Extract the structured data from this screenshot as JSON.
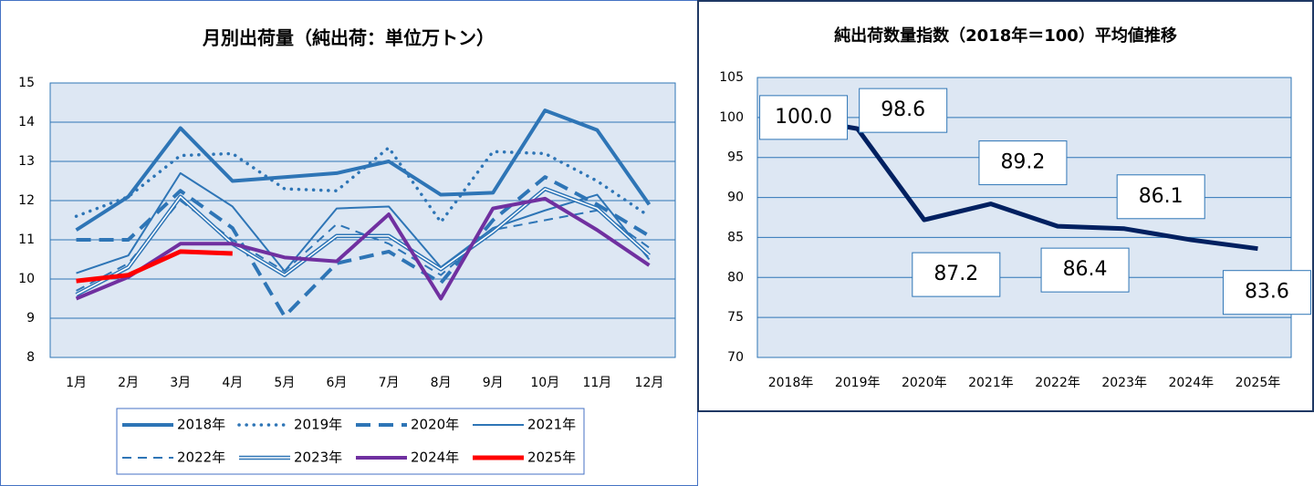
{
  "chart_data": [
    {
      "type": "line",
      "title": "月別出荷量（純出荷：単位万トン）",
      "categories": [
        "1月",
        "2月",
        "3月",
        "4月",
        "5月",
        "6月",
        "7月",
        "8月",
        "9月",
        "10月",
        "11月",
        "12月"
      ],
      "ylim": [
        8,
        15
      ],
      "yticks": [
        8,
        9,
        10,
        11,
        12,
        13,
        14,
        15
      ],
      "grid": true,
      "legend": "bottom",
      "series": [
        {
          "name": "2018年",
          "color": "#2e75b6",
          "width": 4,
          "dash": "solid",
          "values": [
            11.25,
            12.1,
            13.85,
            12.5,
            12.6,
            12.7,
            13.0,
            12.15,
            12.2,
            14.3,
            13.8,
            11.9
          ]
        },
        {
          "name": "2019年",
          "color": "#2e75b6",
          "width": 3.5,
          "dash": "dot",
          "values": [
            11.6,
            12.1,
            13.15,
            13.2,
            12.3,
            12.25,
            13.35,
            11.45,
            13.25,
            13.2,
            12.5,
            11.6
          ]
        },
        {
          "name": "2020年",
          "color": "#2e75b6",
          "width": 4,
          "dash": "dash",
          "values": [
            11.0,
            11.0,
            12.25,
            11.3,
            9.05,
            10.4,
            10.7,
            9.9,
            11.5,
            12.6,
            11.9,
            11.1
          ]
        },
        {
          "name": "2021年",
          "color": "#2e75b6",
          "width": 2,
          "dash": "solid",
          "values": [
            10.15,
            10.6,
            12.7,
            11.85,
            10.2,
            11.8,
            11.85,
            10.3,
            11.3,
            11.75,
            12.15,
            10.5
          ]
        },
        {
          "name": "2022年",
          "color": "#2e75b6",
          "width": 2,
          "dash": "dash",
          "values": [
            9.7,
            10.4,
            12.0,
            11.0,
            10.2,
            11.4,
            10.9,
            10.1,
            11.25,
            11.5,
            11.75,
            10.8
          ]
        },
        {
          "name": "2023年",
          "color": "#2e75b6",
          "width": 4,
          "dash": "double",
          "values": [
            9.6,
            10.3,
            12.1,
            10.9,
            10.1,
            11.1,
            11.1,
            10.25,
            11.2,
            12.3,
            11.8,
            10.6
          ]
        },
        {
          "name": "2024年",
          "color": "#7030a0",
          "width": 4,
          "dash": "solid",
          "values": [
            9.5,
            10.05,
            10.9,
            10.9,
            10.55,
            10.45,
            11.65,
            9.5,
            11.8,
            12.05,
            11.25,
            10.35
          ]
        },
        {
          "name": "2025年",
          "color": "#ff0000",
          "width": 5,
          "dash": "solid",
          "values": [
            9.95,
            10.1,
            10.7,
            10.65,
            null,
            null,
            null,
            null,
            null,
            null,
            null,
            null
          ]
        }
      ]
    },
    {
      "type": "line",
      "title": "純出荷数量指数（2018年＝100）平均値推移",
      "categories": [
        "2018年",
        "2019年",
        "2020年",
        "2021年",
        "2022年",
        "2023年",
        "2024年",
        "2025年"
      ],
      "ylim": [
        70,
        105
      ],
      "yticks": [
        70,
        75,
        80,
        85,
        90,
        95,
        100,
        105
      ],
      "grid": true,
      "series": [
        {
          "color": "#002060",
          "width": 5,
          "dash": "solid",
          "values": [
            100,
            98.6,
            87.2,
            89.2,
            86.4,
            86.1,
            84.7,
            83.6
          ],
          "value_labels": [
            "100.0",
            "98.6",
            "87.2",
            "89.2",
            "86.4",
            "86.1",
            null,
            "83.6"
          ]
        }
      ]
    }
  ]
}
